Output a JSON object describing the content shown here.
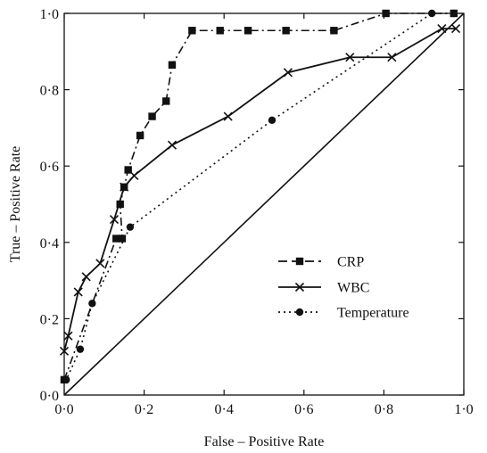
{
  "chart_data": {
    "type": "line",
    "xlabel": "False – Positive Rate",
    "ylabel": "True – Positive Rate",
    "xlim": [
      0,
      1
    ],
    "ylim": [
      0,
      1
    ],
    "x_ticks": [
      {
        "value": 0,
        "label": "0·0"
      },
      {
        "value": 0.2,
        "label": "0·2"
      },
      {
        "value": 0.4,
        "label": "0·4"
      },
      {
        "value": 0.6,
        "label": "0·6"
      },
      {
        "value": 0.8,
        "label": "0·8"
      },
      {
        "value": 1,
        "label": "1·0"
      }
    ],
    "y_ticks": [
      {
        "value": 0,
        "label": "0·0"
      },
      {
        "value": 0.2,
        "label": "0·2"
      },
      {
        "value": 0.4,
        "label": "0·4"
      },
      {
        "value": 0.6,
        "label": "0·6"
      },
      {
        "value": 0.8,
        "label": "0·8"
      },
      {
        "value": 1,
        "label": "1·0"
      }
    ],
    "grid": false,
    "legend_position": "center-right",
    "reference_line": {
      "x": [
        0,
        1
      ],
      "y": [
        0,
        1
      ]
    },
    "series": [
      {
        "name": "CRP",
        "marker": "square",
        "line_style": "dash-dot",
        "color": "#111111",
        "x": [
          0.0,
          0.13,
          0.145,
          0.14,
          0.15,
          0.16,
          0.19,
          0.22,
          0.255,
          0.27,
          0.32,
          0.39,
          0.46,
          0.555,
          0.675,
          0.805,
          0.975
        ],
        "y": [
          0.04,
          0.41,
          0.41,
          0.5,
          0.545,
          0.59,
          0.68,
          0.73,
          0.77,
          0.865,
          0.955,
          0.955,
          0.955,
          0.955,
          0.955,
          1.0,
          1.0
        ]
      },
      {
        "name": "WBC",
        "marker": "x",
        "line_style": "solid",
        "color": "#111111",
        "x": [
          0.0,
          0.01,
          0.035,
          0.055,
          0.09,
          0.125,
          0.15,
          0.175,
          0.27,
          0.41,
          0.56,
          0.715,
          0.82,
          0.945,
          0.98
        ],
        "y": [
          0.115,
          0.155,
          0.27,
          0.31,
          0.345,
          0.46,
          0.545,
          0.575,
          0.655,
          0.73,
          0.845,
          0.885,
          0.885,
          0.96,
          0.96
        ]
      },
      {
        "name": "Temperature",
        "marker": "circle",
        "line_style": "dotted",
        "color": "#111111",
        "x": [
          0.0,
          0.005,
          0.04,
          0.07,
          0.165,
          0.52,
          0.92,
          0.975
        ],
        "y": [
          0.04,
          0.04,
          0.12,
          0.24,
          0.44,
          0.72,
          1.0,
          1.0
        ]
      }
    ]
  }
}
